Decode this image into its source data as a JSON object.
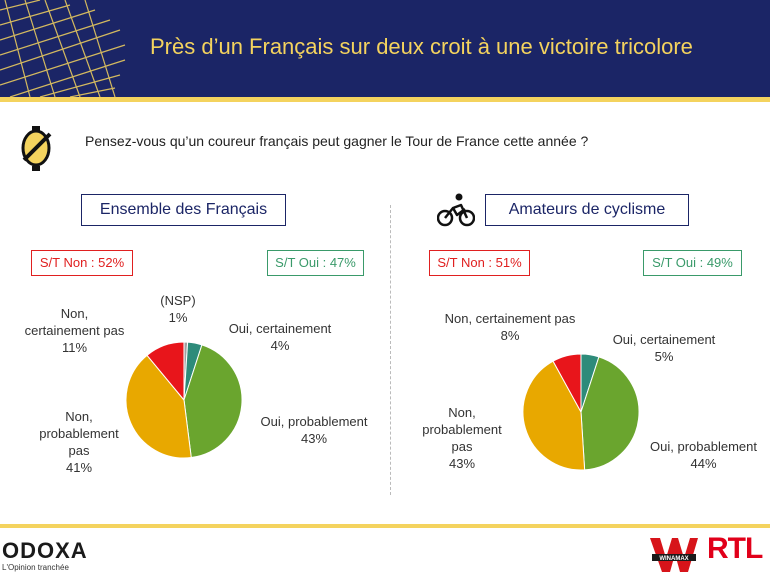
{
  "header": {
    "title": "Près d’un Français sur deux croit à une victoire tricolore"
  },
  "question": "Pensez-vous qu’un coureur français peut gagner le Tour de France cette année ?",
  "left": {
    "section_label": "Ensemble des Français",
    "badge_non": "S/T Non : 52%",
    "badge_oui": "S/T Oui : 47%",
    "labels": {
      "nsp": [
        "(NSP)",
        "1%"
      ],
      "oui_cert": [
        "Oui, certainement",
        "4%"
      ],
      "oui_prob": [
        "Oui, probablement",
        "43%"
      ],
      "non_prob": [
        "Non,",
        "probablement",
        "pas",
        "41%"
      ],
      "non_cert": [
        "Non,",
        "certainement pas",
        "11%"
      ]
    }
  },
  "right": {
    "section_label": "Amateurs de cyclisme",
    "badge_non": "S/T Non : 51%",
    "badge_oui": "S/T Oui : 49%",
    "labels": {
      "oui_cert": [
        "Oui, certainement",
        "5%"
      ],
      "oui_prob": [
        "Oui, probablement",
        "44%"
      ],
      "non_prob": [
        "Non,",
        "probablement",
        "pas",
        "43%"
      ],
      "non_cert": [
        "Non, certainement pas",
        "8%"
      ]
    }
  },
  "chart_data": [
    {
      "type": "pie",
      "title": "Ensemble des Français",
      "categories": [
        "(NSP)",
        "Oui, certainement",
        "Oui, probablement",
        "Non, probablement pas",
        "Non, certainement pas"
      ],
      "values": [
        1,
        4,
        43,
        41,
        11
      ],
      "colors": [
        "#a0a0a0",
        "#2e8b7a",
        "#6aa52e",
        "#e8a800",
        "#e8151b"
      ]
    },
    {
      "type": "pie",
      "title": "Amateurs de cyclisme",
      "categories": [
        "Oui, certainement",
        "Oui, probablement",
        "Non, probablement pas",
        "Non, certainement pas"
      ],
      "values": [
        5,
        44,
        43,
        8
      ],
      "colors": [
        "#2e8b7a",
        "#6aa52e",
        "#e8a800",
        "#e8151b"
      ]
    }
  ],
  "footer": {
    "odoxa": "ODOXA",
    "odoxa_tagline": "L'Opinion tranchée",
    "winamax": "WINAMAX",
    "rtl": "RTL"
  }
}
